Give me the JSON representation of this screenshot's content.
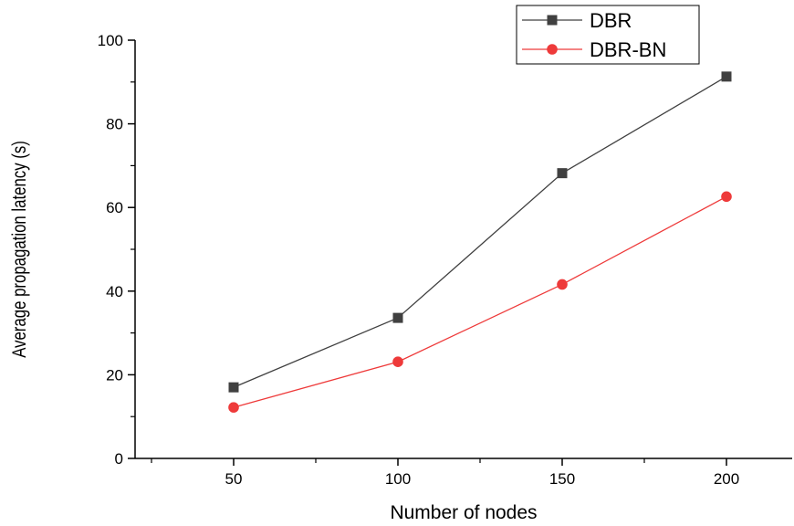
{
  "chart_data": {
    "type": "line",
    "x": [
      50,
      100,
      150,
      200
    ],
    "xlabel": "Number of nodes",
    "ylabel": "Average propagation latency (s)",
    "xlim": [
      20,
      220
    ],
    "ylim": [
      0,
      100
    ],
    "x_ticks": [
      50,
      100,
      150,
      200
    ],
    "y_ticks": [
      0,
      20,
      40,
      60,
      80,
      100
    ],
    "grid": false,
    "legend_position": "top-right",
    "series": [
      {
        "name": "DBR",
        "values": [
          17,
          33.6,
          68.2,
          91.3
        ],
        "color": "#404040",
        "marker": "square"
      },
      {
        "name": "DBR-BN",
        "values": [
          12.2,
          23.1,
          41.6,
          62.6
        ],
        "color": "#ee3a3a",
        "marker": "circle"
      }
    ]
  }
}
